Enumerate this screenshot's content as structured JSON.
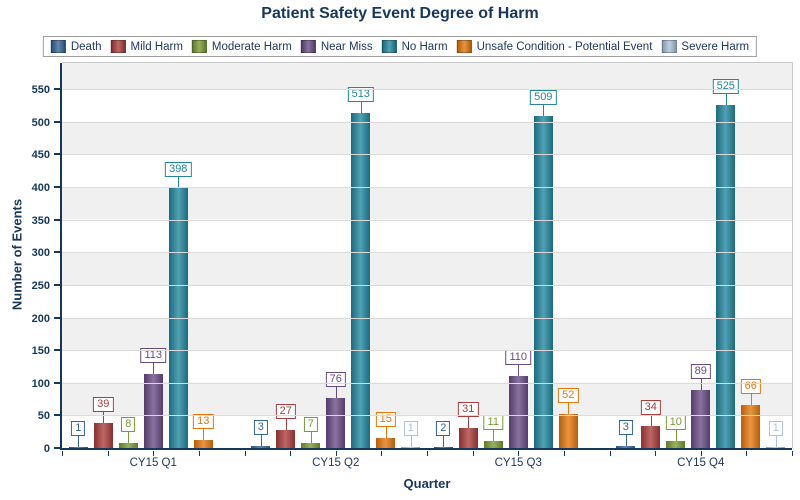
{
  "chart_data": {
    "type": "bar",
    "title": "Patient Safety Event Degree of Harm",
    "xlabel": "Quarter",
    "ylabel": "Number of Events",
    "categories": [
      "CY15 Q1",
      "CY15 Q2",
      "CY15 Q3",
      "CY15 Q4"
    ],
    "series": [
      {
        "name": "Death",
        "color": "#366598",
        "values": [
          1,
          3,
          2,
          3
        ]
      },
      {
        "name": "Mild Harm",
        "color": "#AA3C3C",
        "values": [
          39,
          27,
          31,
          34
        ]
      },
      {
        "name": "Moderate Harm",
        "color": "#7A9A33",
        "values": [
          8,
          7,
          11,
          10
        ]
      },
      {
        "name": "Near Miss",
        "color": "#684B85",
        "values": [
          113,
          76,
          110,
          89
        ]
      },
      {
        "name": "No Harm",
        "color": "#21869E",
        "values": [
          398,
          513,
          509,
          525
        ]
      },
      {
        "name": "Unsafe Condition - Potential Event",
        "color": "#E4760C",
        "values": [
          13,
          15,
          52,
          66
        ]
      },
      {
        "name": "Severe Harm",
        "color": "#A9C2DE",
        "values": [
          null,
          1,
          null,
          1
        ]
      }
    ],
    "ylim": [
      0,
      590
    ],
    "ytick_interval": 50,
    "yticks": [
      0,
      50,
      100,
      150,
      200,
      250,
      300,
      350,
      400,
      450,
      500,
      550
    ],
    "grid": "horizontal",
    "legend_position": "top",
    "data_labels": "boxed callout above each bar",
    "plot_band_colors": [
      "#FFFFFF",
      "#F0F0F0"
    ]
  },
  "colors": {
    "title_text": "#17375D",
    "axis_line": "#17375D",
    "axis_text": "#1F3864",
    "gridline": "#DBDBDB",
    "plot_border": "#C8C8C8",
    "legend_border": "#9E9E9E",
    "background": "#FFFFFF"
  }
}
